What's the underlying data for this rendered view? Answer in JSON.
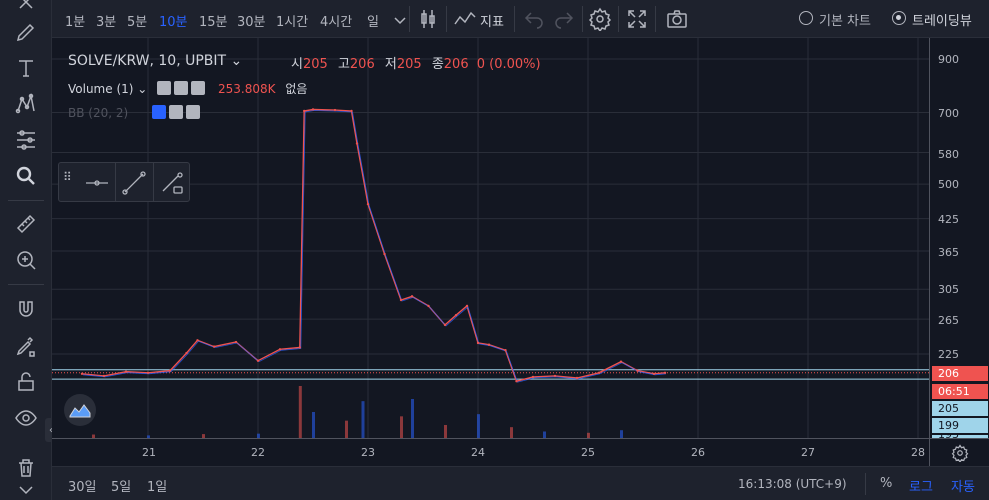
{
  "toolbar": {
    "timeframes": [
      {
        "label": "1분",
        "active": false
      },
      {
        "label": "3분",
        "active": false
      },
      {
        "label": "5분",
        "active": false
      },
      {
        "label": "10분",
        "active": true
      },
      {
        "label": "15분",
        "active": false
      },
      {
        "label": "30분",
        "active": false
      },
      {
        "label": "1시간",
        "active": false
      },
      {
        "label": "4시간",
        "active": false
      },
      {
        "label": "일",
        "active": false
      }
    ],
    "indicators_label": "지표",
    "chart_mode_basic": "기본 차트",
    "chart_mode_tradingview": "트레이딩뷰"
  },
  "legend": {
    "symbol": "SOLVE/KRW, 10, UPBIT",
    "open_label": "시",
    "open_value": "205",
    "high_label": "고",
    "high_value": "206",
    "low_label": "저",
    "low_value": "205",
    "close_label": "종",
    "close_value": "206",
    "change": "0 (0.00%)",
    "volume_label": "Volume (1)",
    "volume_value": "253.808K",
    "volume_extra": "없음",
    "bb_label": "BB (20, 2)"
  },
  "price_axis": {
    "ticks": [
      "900",
      "700",
      "580",
      "500",
      "425",
      "365",
      "305",
      "265",
      "225"
    ],
    "last_price": "206",
    "countdown": "06:51",
    "bb_upper": "205",
    "bb_lower": "199",
    "cut_label": "193"
  },
  "time_axis": {
    "ticks": [
      "21",
      "22",
      "23",
      "24",
      "25",
      "26",
      "27",
      "28"
    ]
  },
  "bottom": {
    "ranges": [
      "30일",
      "5일",
      "1일"
    ],
    "clock": "16:13:08 (UTC+9)",
    "percent": "%",
    "log": "로그",
    "auto": "자동"
  },
  "chart_data": {
    "type": "line",
    "title": "SOLVE/KRW, 10, UPBIT",
    "x_ticks": [
      "21",
      "22",
      "23",
      "24",
      "25",
      "26",
      "27",
      "28"
    ],
    "y_ticks": [
      900,
      700,
      580,
      500,
      425,
      365,
      305,
      265,
      225
    ],
    "y_scale": "log",
    "series": [
      {
        "name": "SOLVE/KRW",
        "x": [
          20.4,
          20.6,
          20.8,
          21.0,
          21.2,
          21.35,
          21.45,
          21.6,
          21.8,
          22.0,
          22.2,
          22.38,
          22.42,
          22.5,
          22.7,
          22.85,
          22.9,
          23.0,
          23.15,
          23.3,
          23.4,
          23.55,
          23.7,
          23.8,
          23.9,
          24.0,
          24.1,
          24.25,
          24.35,
          24.5,
          24.7,
          24.9,
          25.1,
          25.3,
          25.45,
          25.6,
          25.7
        ],
        "values": [
          205,
          203,
          207,
          206,
          208,
          226,
          240,
          233,
          238,
          218,
          230,
          232,
          705,
          710,
          708,
          705,
          605,
          455,
          360,
          290,
          295,
          282,
          258,
          270,
          282,
          237,
          235,
          229,
          198,
          202,
          203,
          201,
          206,
          217,
          208,
          205,
          206
        ]
      }
    ],
    "volume": {
      "name": "Volume (1)",
      "x": [
        20.5,
        21.0,
        21.5,
        22.0,
        22.38,
        22.5,
        22.8,
        22.95,
        23.3,
        23.4,
        23.7,
        24.0,
        24.3,
        24.6,
        25.0,
        25.3
      ],
      "values": [
        8,
        6,
        9,
        10,
        120,
        60,
        40,
        85,
        50,
        90,
        30,
        55,
        25,
        15,
        12,
        18
      ]
    }
  }
}
